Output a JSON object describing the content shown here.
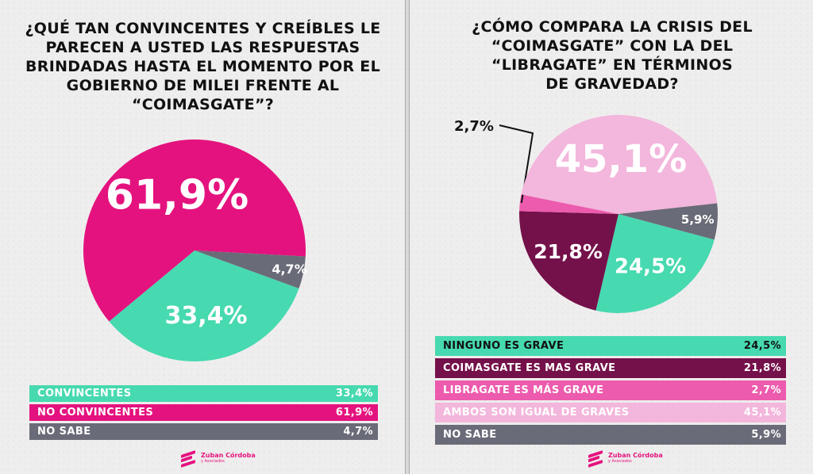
{
  "colors": {
    "convincentes": "#47d9b0",
    "no_convincentes": "#e4127e",
    "no_sabe": "#6a6b78",
    "ninguno": "#47d9b0",
    "coimasgate_grave": "#74104a",
    "libragate_grave": "#ec5bad",
    "ambos": "#f3b6dc"
  },
  "brand": {
    "name": "Zuban Córdoba",
    "suffix": "y Asociados",
    "icon": "zc-logo-icon"
  },
  "left": {
    "question": "¿QUÉ TAN CONVINCENTES Y CREÍBLES LE\nPARECEN A USTED LAS RESPUESTAS\nBRINDADAS HASTA EL MOMENTO POR EL\nGOBIERNO DE MILEI FRENTE AL\n“COIMASGATE”?",
    "legend": [
      {
        "label": "CONVINCENTES",
        "value": "33,4%",
        "color": "#47d9b0",
        "text": "#ffffff"
      },
      {
        "label": "NO CONVINCENTES",
        "value": "61,9%",
        "color": "#e4127e",
        "text": "#ffffff"
      },
      {
        "label": "NO SABE",
        "value": "4,7%",
        "color": "#6a6b78",
        "text": "#ffffff"
      }
    ]
  },
  "right": {
    "question": "¿CÓMO COMPARA LA CRISIS DEL\n“COIMASGATE” CON LA DEL\n“LIBRAGATE” EN TÉRMINOS\nDE GRAVEDAD?",
    "legend": [
      {
        "label": "NINGUNO ES GRAVE",
        "value": "24,5%",
        "color": "#47d9b0",
        "text": "#111111"
      },
      {
        "label": "COIMASGATE ES MAS GRAVE",
        "value": "21,8%",
        "color": "#74104a",
        "text": "#ffffff"
      },
      {
        "label": "LIBRAGATE ES MÁS GRAVE",
        "value": "2,7%",
        "color": "#ec5bad",
        "text": "#ffffff"
      },
      {
        "label": "AMBOS SON IGUAL DE GRAVES",
        "value": "45,1%",
        "color": "#f3b6dc",
        "text": "#ffffff"
      },
      {
        "label": "NO SABE",
        "value": "5,9%",
        "color": "#6a6b78",
        "text": "#ffffff"
      }
    ]
  },
  "chart_data": [
    {
      "type": "pie",
      "title": "¿QUÉ TAN CONVINCENTES Y CREÍBLES LE PARECEN A USTED LAS RESPUESTAS BRINDADAS HASTA EL MOMENTO POR EL GOBIERNO DE MILEI FRENTE AL “COIMASGATE”?",
      "categories": [
        "CONVINCENTES",
        "NO CONVINCENTES",
        "NO SABE"
      ],
      "values": [
        33.4,
        61.9,
        4.7
      ],
      "labels": [
        "33,4%",
        "61,9%",
        "4,7%"
      ],
      "colors": [
        "#47d9b0",
        "#e4127e",
        "#6a6b78"
      ]
    },
    {
      "type": "pie",
      "title": "¿CÓMO COMPARA LA CRISIS DEL “COIMASGATE” CON LA DEL “LIBRAGATE” EN TÉRMINOS DE GRAVEDAD?",
      "categories": [
        "NINGUNO ES GRAVE",
        "COIMASGATE ES MAS GRAVE",
        "LIBRAGATE ES MÁS GRAVE",
        "AMBOS SON IGUAL DE GRAVES",
        "NO SABE"
      ],
      "values": [
        24.5,
        21.8,
        2.7,
        45.1,
        5.9
      ],
      "labels": [
        "24,5%",
        "21,8%",
        "2,7%",
        "45,1%",
        "5,9%"
      ],
      "colors": [
        "#47d9b0",
        "#74104a",
        "#ec5bad",
        "#f3b6dc",
        "#6a6b78"
      ]
    }
  ]
}
